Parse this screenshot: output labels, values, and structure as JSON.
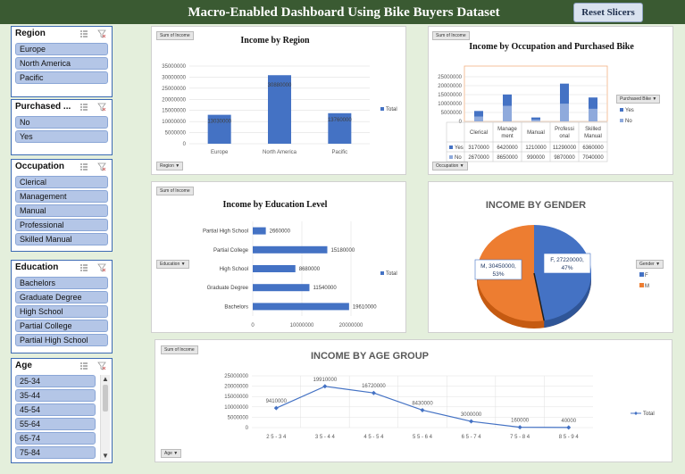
{
  "header": {
    "title": "Macro-Enabled Dashboard Using Bike Buyers Dataset",
    "reset_label": "Reset Slicers"
  },
  "slicers": {
    "region": {
      "title": "Region",
      "items": [
        "Europe",
        "North America",
        "Pacific"
      ]
    },
    "purchased": {
      "title": "Purchased ...",
      "items": [
        "No",
        "Yes"
      ]
    },
    "occupation": {
      "title": "Occupation",
      "items": [
        "Clerical",
        "Management",
        "Manual",
        "Professional",
        "Skilled Manual"
      ]
    },
    "education": {
      "title": "Education",
      "items": [
        "Bachelors",
        "Graduate Degree",
        "High School",
        "Partial College",
        "Partial High School"
      ]
    },
    "age": {
      "title": "Age",
      "items": [
        "25-34",
        "35-44",
        "45-54",
        "55-64",
        "65-74",
        "75-84"
      ]
    }
  },
  "colors": {
    "blue": "#4472c4",
    "orange": "#ed7d31",
    "light_blue": "#8faadc",
    "green_bg": "#e4efdc",
    "header_green": "#3a5a32"
  },
  "panels": {
    "region": {
      "value_field": "Sum of Income",
      "title": "Income by Region",
      "axis_field": "Region",
      "legend": "Total"
    },
    "occupation": {
      "value_field": "Sum of Income",
      "title": "Income by Occupation and Purchased Bike",
      "axis_field": "Occupation",
      "legend_field": "Purchased Bike"
    },
    "education": {
      "value_field": "Sum of Income",
      "title": "Income by Education Level",
      "axis_field": "Education",
      "legend": "Total"
    },
    "gender": {
      "title": "INCOME BY GENDER",
      "legend_field": "Gender"
    },
    "age": {
      "value_field": "Sum of Income",
      "title": "INCOME BY AGE GROUP",
      "axis_field": "Age",
      "legend": "Total"
    }
  },
  "chart_data": [
    {
      "type": "bar",
      "title": "Income by Region",
      "categories": [
        "Europe",
        "North America",
        "Pacific"
      ],
      "series": [
        {
          "name": "Total",
          "values": [
            13030000,
            30880000,
            13760000
          ]
        }
      ],
      "data_labels": [
        "13030000",
        "30880000",
        "13760000"
      ],
      "ylim": [
        0,
        35000000
      ],
      "yticks": [
        "0",
        "5000000",
        "10000000",
        "15000000",
        "20000000",
        "25000000",
        "30000000",
        "35000000"
      ],
      "legend": "right"
    },
    {
      "type": "bar",
      "title": "Income by Occupation and Purchased Bike",
      "stacked": true,
      "categories": [
        "Clerical",
        "Management",
        "Manual",
        "Professional",
        "Skilled Manual"
      ],
      "category_labels": [
        [
          "Clerical"
        ],
        [
          "Manage",
          "ment"
        ],
        [
          "Manual"
        ],
        [
          "Professi",
          "onal"
        ],
        [
          "Skilled",
          "Manual"
        ]
      ],
      "series": [
        {
          "name": "Yes",
          "values": [
            3170000,
            6420000,
            1210000,
            11290000,
            6360000
          ]
        },
        {
          "name": "No",
          "values": [
            2670000,
            8650000,
            990000,
            9870000,
            7040000
          ]
        }
      ],
      "ylim": [
        0,
        25000000
      ],
      "yticks": [
        "0",
        "5000000",
        "10000000",
        "15000000",
        "20000000",
        "25000000"
      ],
      "legend": "right"
    },
    {
      "type": "bar",
      "title": "Income by Education Level",
      "orientation": "horizontal",
      "categories": [
        "Partial High School",
        "Partial College",
        "High School",
        "Graduate Degree",
        "Bachelors"
      ],
      "series": [
        {
          "name": "Total",
          "values": [
            2660000,
            15180000,
            8680000,
            11540000,
            19610000
          ]
        }
      ],
      "data_labels": [
        "2660000",
        "15180000",
        "8680000",
        "11540000",
        "19610000"
      ],
      "xlim": [
        0,
        20000000
      ],
      "xticks": [
        "0",
        "10000000",
        "20000000"
      ],
      "legend": "right"
    },
    {
      "type": "pie",
      "title": "INCOME BY GENDER",
      "categories": [
        "F",
        "M"
      ],
      "values": [
        27220000,
        30450000
      ],
      "data_labels": [
        [
          "F, 27220000,",
          "47%"
        ],
        [
          "M, 30450000,",
          "53%"
        ]
      ],
      "legend_labels": [
        "F",
        "M"
      ],
      "legend": "right"
    },
    {
      "type": "line",
      "title": "INCOME BY AGE GROUP",
      "categories": [
        "25-34",
        "35-44",
        "45-54",
        "55-64",
        "65-74",
        "75-84",
        "85-94"
      ],
      "category_labels": [
        "2 5 - 3 4",
        "3 5 - 4 4",
        "4 5 - 5 4",
        "5 5 - 6 4",
        "6 5 - 7 4",
        "7 5 - 8 4",
        "8 5 - 9 4"
      ],
      "series": [
        {
          "name": "Total",
          "values": [
            9410000,
            19910000,
            16720000,
            8430000,
            3000000,
            160000,
            40000
          ]
        }
      ],
      "data_labels": [
        "9410000",
        "19910000",
        "16720000",
        "8430000",
        "3000000",
        "160000",
        "40000"
      ],
      "ylim": [
        0,
        25000000
      ],
      "yticks": [
        "0",
        "5000000",
        "10000000",
        "15000000",
        "20000000",
        "25000000"
      ],
      "legend": "right"
    }
  ]
}
